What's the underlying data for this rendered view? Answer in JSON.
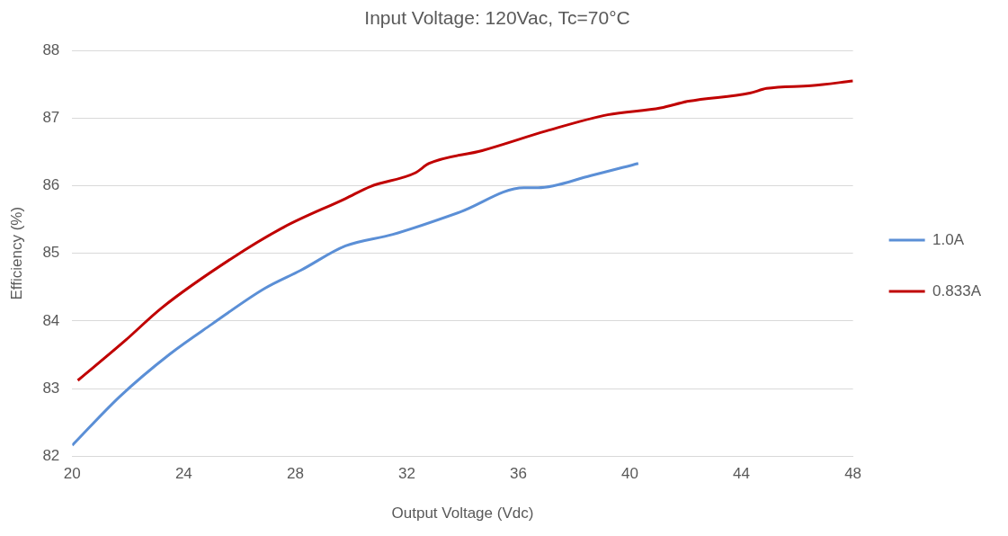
{
  "chart_data": {
    "type": "line",
    "title": "Input Voltage: 120Vac, Tc=70°C",
    "xlabel": "Output Voltage (Vdc)",
    "ylabel": "Efficiency (%)",
    "xlim": [
      20,
      48
    ],
    "xticks": [
      20,
      24,
      28,
      32,
      36,
      40,
      44,
      48
    ],
    "ylim": [
      82,
      88
    ],
    "yticks": [
      82,
      83,
      84,
      85,
      86,
      87,
      88
    ],
    "grid": "y",
    "legend": "right",
    "marker": "none",
    "line_style": "solid",
    "series": [
      {
        "name": "1.0A",
        "color": "#5b8fd6",
        "x": [
          20,
          21.7,
          23.5,
          25,
          26.9,
          28.2,
          29.8,
          31.5,
          33.9,
          36.2,
          36.7,
          38.6,
          40.3
        ],
        "values": [
          82.16,
          82.88,
          83.51,
          83.95,
          84.48,
          84.75,
          85.11,
          85.28,
          85.61,
          85.97,
          85.97,
          86.15,
          86.33
        ]
      },
      {
        "name": "0.833A",
        "color": "#c00000",
        "x": [
          20.2,
          21.9,
          23.2,
          25.7,
          27.6,
          29.8,
          30.7,
          32.3,
          32.8,
          34.7,
          37,
          39.2,
          41.1,
          42.1,
          44.3,
          44.9,
          46.5,
          48
        ],
        "values": [
          83.12,
          83.71,
          84.19,
          84.92,
          85.39,
          85.81,
          85.99,
          86.19,
          86.33,
          86.52,
          86.81,
          87.05,
          87.15,
          87.25,
          87.37,
          87.44,
          87.48,
          87.55
        ]
      }
    ]
  }
}
